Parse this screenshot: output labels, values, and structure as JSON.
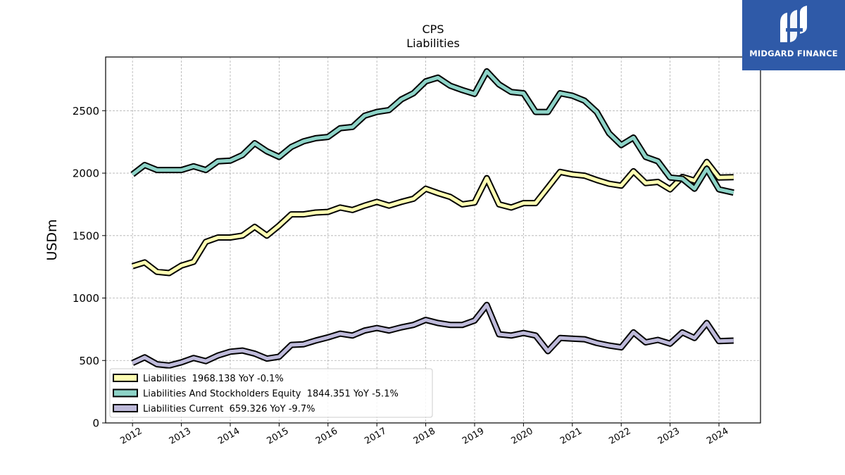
{
  "brand": {
    "name": "MIDGARD FINANCE",
    "bg_color": "#2f5aa8"
  },
  "chart_data": {
    "type": "line",
    "title": "CPS",
    "subtitle": "Liabilities",
    "xlabel": "",
    "ylabel": "USDm",
    "ylim": [
      0,
      2930
    ],
    "xlim": [
      2011.45,
      2024.85
    ],
    "yticks": [
      0,
      500,
      1000,
      1500,
      2000,
      2500
    ],
    "xticks": [
      2012,
      2013,
      2014,
      2015,
      2016,
      2017,
      2018,
      2019,
      2020,
      2021,
      2022,
      2023,
      2024
    ],
    "grid": true,
    "legend_position": "lower-left",
    "x": [
      2012.0,
      2012.25,
      2012.5,
      2012.75,
      2013.0,
      2013.25,
      2013.5,
      2013.75,
      2014.0,
      2014.25,
      2014.5,
      2014.75,
      2015.0,
      2015.25,
      2015.5,
      2015.75,
      2016.0,
      2016.25,
      2016.5,
      2016.75,
      2017.0,
      2017.25,
      2017.5,
      2017.75,
      2018.0,
      2018.25,
      2018.5,
      2018.75,
      2019.0,
      2019.25,
      2019.5,
      2019.75,
      2020.0,
      2020.25,
      2020.5,
      2020.75,
      2021.0,
      2021.25,
      2021.5,
      2021.75,
      2022.0,
      2022.25,
      2022.5,
      2022.75,
      2023.0,
      2023.25,
      2023.5,
      2023.75,
      2024.0,
      2024.3
    ],
    "series": [
      {
        "name": "Liabilities",
        "legend_label": "Liabilities  1968.138 YoY -0.1%",
        "color": "#ffffb3",
        "values": [
          1255,
          1285,
          1210,
          1200,
          1260,
          1290,
          1450,
          1485,
          1485,
          1500,
          1570,
          1500,
          1580,
          1670,
          1670,
          1685,
          1690,
          1725,
          1705,
          1740,
          1770,
          1740,
          1770,
          1795,
          1875,
          1840,
          1810,
          1750,
          1765,
          1960,
          1750,
          1725,
          1760,
          1760,
          1885,
          2010,
          1990,
          1980,
          1945,
          1915,
          1900,
          2015,
          1920,
          1930,
          1870,
          1970,
          1940,
          2090,
          1965,
          1968.138
        ]
      },
      {
        "name": "Liabilities And Stockholders Equity",
        "legend_label": "Liabilities And Stockholders Equity  1844.351 YoY -5.1%",
        "color": "#8dd3c7",
        "values": [
          1990,
          2065,
          2025,
          2025,
          2025,
          2055,
          2025,
          2095,
          2100,
          2145,
          2240,
          2175,
          2130,
          2210,
          2255,
          2280,
          2290,
          2360,
          2370,
          2460,
          2490,
          2505,
          2590,
          2640,
          2735,
          2765,
          2700,
          2665,
          2635,
          2815,
          2710,
          2650,
          2640,
          2490,
          2490,
          2640,
          2620,
          2580,
          2490,
          2320,
          2225,
          2285,
          2130,
          2095,
          1965,
          1955,
          1875,
          2035,
          1870,
          1844.351
        ]
      },
      {
        "name": "Liabilities Current",
        "legend_label": "Liabilities Current  659.326 YoY -9.7%",
        "color": "#bebada",
        "values": [
          480,
          525,
          470,
          460,
          485,
          520,
          495,
          540,
          570,
          580,
          555,
          515,
          530,
          625,
          630,
          660,
          685,
          715,
          700,
          740,
          760,
          740,
          765,
          785,
          825,
          800,
          785,
          785,
          820,
          945,
          710,
          700,
          720,
          700,
          575,
          680,
          675,
          670,
          640,
          620,
          605,
          725,
          645,
          665,
          635,
          725,
          680,
          800,
          655,
          659.326
        ]
      }
    ]
  }
}
